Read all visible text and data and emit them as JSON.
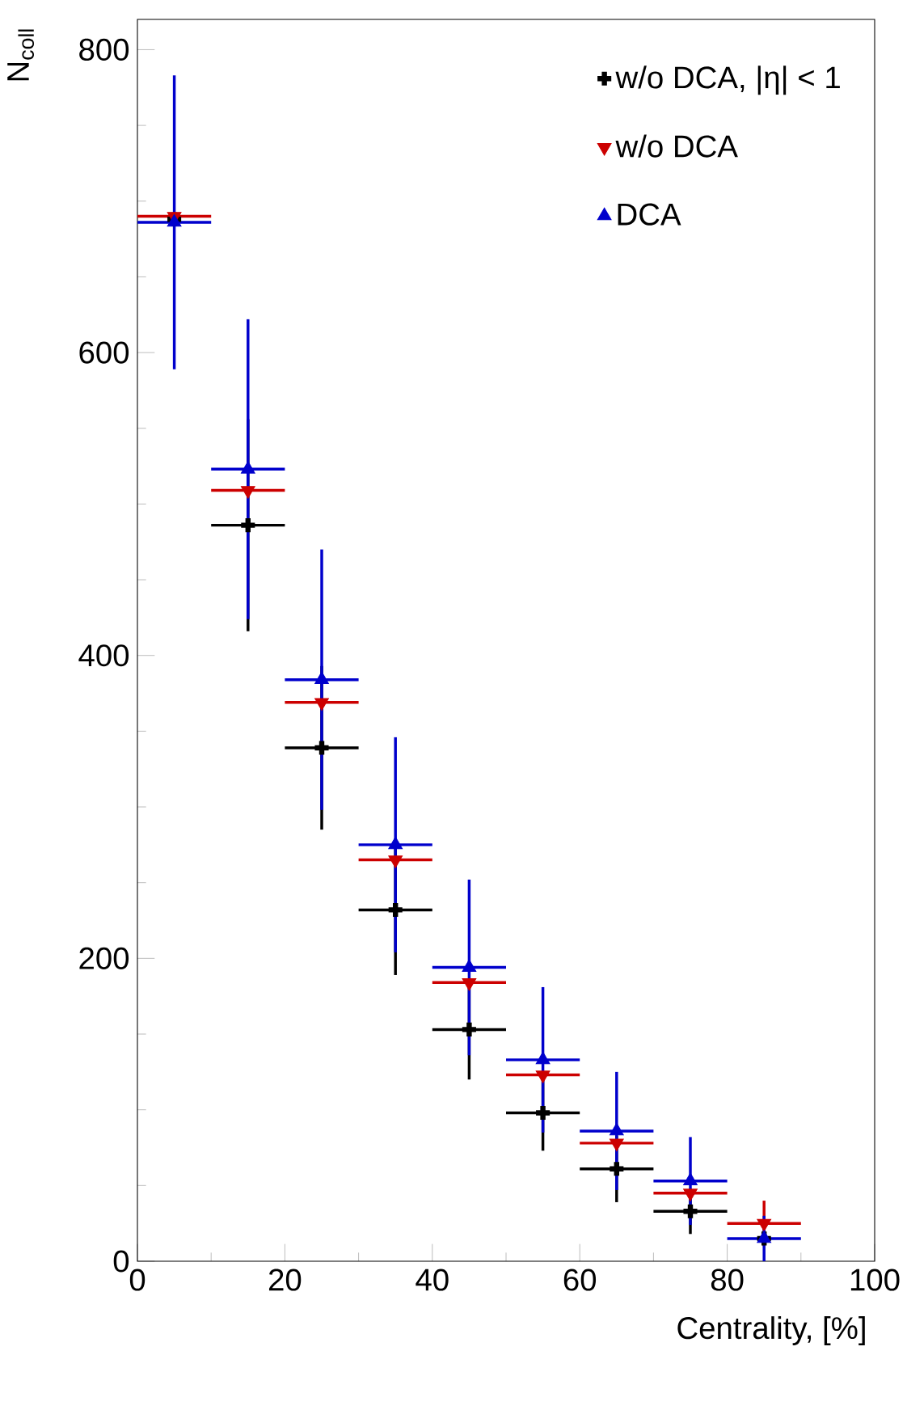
{
  "chart_data": {
    "type": "scatter",
    "xlabel": "Centrality, [%]",
    "ylabel": "N$_{coll}$",
    "x": [
      5,
      15,
      25,
      35,
      45,
      55,
      65,
      75,
      85
    ],
    "series": [
      {
        "name": "w/o DCA, |η| < 1",
        "color": "#000000",
        "marker": "cross",
        "values": [
          688,
          486,
          339,
          232,
          153,
          98,
          61,
          33,
          15
        ],
        "errors": [
          null,
          70,
          54,
          43,
          33,
          25,
          22,
          15,
          null
        ],
        "xerrors": [
          null,
          5,
          5,
          5,
          5,
          5,
          5,
          5,
          null
        ]
      },
      {
        "name": "w/o DCA",
        "color": "#cc0000",
        "marker": "triangle-down",
        "values": [
          690,
          509,
          369,
          265,
          184,
          123,
          78,
          45,
          25
        ],
        "errors": [
          null,
          null,
          null,
          null,
          null,
          null,
          null,
          null,
          15
        ],
        "xerrors": [
          5,
          5,
          5,
          5,
          5,
          5,
          5,
          5,
          5
        ]
      },
      {
        "name": "DCA",
        "color": "#0000cc",
        "marker": "triangle",
        "values": [
          686,
          523,
          384,
          275,
          194,
          133,
          86,
          53,
          15
        ],
        "errors": [
          97,
          99,
          86,
          71,
          58,
          48,
          39,
          29,
          15
        ],
        "xerrors": [
          5,
          5,
          5,
          5,
          5,
          5,
          5,
          5,
          5
        ]
      }
    ],
    "xlim": [
      0,
      100
    ],
    "ylim": [
      0,
      820
    ],
    "xticks": [
      0,
      20,
      40,
      60,
      80,
      100
    ],
    "yticks": [
      0,
      200,
      400,
      600,
      800
    ],
    "grid": false,
    "legend": "top right"
  }
}
